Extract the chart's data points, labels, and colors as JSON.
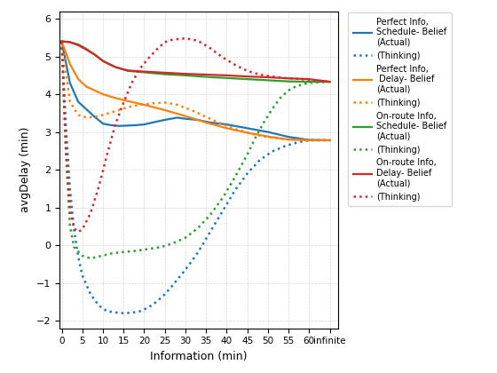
{
  "x_ticks": [
    0,
    5,
    10,
    15,
    20,
    25,
    30,
    35,
    40,
    45,
    50,
    55,
    60,
    65
  ],
  "x_tick_labels": [
    "0",
    "5",
    "10",
    "15",
    "20",
    "25",
    "30",
    "35",
    "40",
    "45",
    "50",
    "55",
    "60",
    "infinite"
  ],
  "blue_actual_x": [
    0,
    2,
    4,
    6,
    8,
    10,
    12,
    14,
    16,
    18,
    20,
    22,
    25,
    28,
    30,
    33,
    36,
    40,
    45,
    50,
    55,
    60,
    65
  ],
  "blue_actual_y": [
    5.4,
    4.3,
    3.8,
    3.6,
    3.4,
    3.22,
    3.18,
    3.16,
    3.17,
    3.18,
    3.2,
    3.25,
    3.32,
    3.38,
    3.35,
    3.32,
    3.25,
    3.2,
    3.1,
    3.0,
    2.87,
    2.79,
    2.78
  ],
  "blue_thinking_x": [
    0,
    1,
    2,
    3,
    4,
    5,
    7,
    9,
    11,
    13,
    15,
    17,
    19,
    21,
    23,
    25,
    27,
    30,
    33,
    36,
    39,
    42,
    45,
    48,
    51,
    54,
    57,
    60,
    65
  ],
  "blue_thinking_y": [
    5.4,
    3.2,
    1.5,
    0.4,
    -0.3,
    -0.8,
    -1.3,
    -1.6,
    -1.75,
    -1.78,
    -1.8,
    -1.79,
    -1.75,
    -1.65,
    -1.5,
    -1.3,
    -1.05,
    -0.65,
    -0.2,
    0.35,
    0.9,
    1.45,
    1.9,
    2.25,
    2.48,
    2.62,
    2.72,
    2.78,
    2.78
  ],
  "orange_actual_x": [
    0,
    2,
    4,
    6,
    8,
    10,
    13,
    16,
    20,
    25,
    30,
    35,
    40,
    45,
    50,
    55,
    60,
    65
  ],
  "orange_actual_y": [
    5.4,
    4.8,
    4.4,
    4.2,
    4.1,
    4.0,
    3.9,
    3.82,
    3.72,
    3.58,
    3.42,
    3.25,
    3.1,
    2.98,
    2.88,
    2.8,
    2.78,
    2.78
  ],
  "orange_thinking_x": [
    0,
    2,
    4,
    6,
    8,
    10,
    13,
    15,
    17,
    19,
    22,
    25,
    28,
    31,
    34,
    38,
    42,
    46,
    50,
    55,
    60,
    65
  ],
  "orange_thinking_y": [
    5.4,
    3.8,
    3.45,
    3.38,
    3.4,
    3.45,
    3.55,
    3.62,
    3.68,
    3.72,
    3.76,
    3.78,
    3.72,
    3.6,
    3.45,
    3.25,
    3.08,
    2.95,
    2.86,
    2.8,
    2.78,
    2.78
  ],
  "green_actual_x": [
    0,
    2,
    4,
    6,
    8,
    10,
    13,
    16,
    20,
    25,
    30,
    35,
    40,
    45,
    50,
    55,
    60,
    65
  ],
  "green_actual_y": [
    5.4,
    5.38,
    5.32,
    5.2,
    5.05,
    4.88,
    4.72,
    4.62,
    4.58,
    4.53,
    4.5,
    4.46,
    4.43,
    4.4,
    4.37,
    4.34,
    4.33,
    4.33
  ],
  "green_thinking_x": [
    0,
    1,
    2,
    3,
    5,
    7,
    9,
    12,
    15,
    18,
    21,
    24,
    27,
    30,
    33,
    36,
    39,
    42,
    45,
    47,
    49,
    51,
    53,
    55,
    57,
    60,
    65
  ],
  "green_thinking_y": [
    5.4,
    2.5,
    0.5,
    -0.05,
    -0.28,
    -0.35,
    -0.3,
    -0.22,
    -0.18,
    -0.15,
    -0.1,
    -0.05,
    0.05,
    0.2,
    0.45,
    0.8,
    1.25,
    1.8,
    2.4,
    2.85,
    3.25,
    3.6,
    3.9,
    4.1,
    4.22,
    4.3,
    4.33
  ],
  "red_actual_x": [
    0,
    2,
    4,
    6,
    8,
    10,
    13,
    16,
    20,
    25,
    30,
    35,
    40,
    45,
    50,
    55,
    60,
    65
  ],
  "red_actual_y": [
    5.4,
    5.38,
    5.3,
    5.18,
    5.05,
    4.88,
    4.72,
    4.63,
    4.6,
    4.57,
    4.54,
    4.52,
    4.5,
    4.47,
    4.45,
    4.42,
    4.4,
    4.33
  ],
  "red_thinking_x": [
    0,
    1,
    2,
    3,
    4,
    5,
    7,
    9,
    11,
    13,
    15,
    17,
    19,
    21,
    23,
    25,
    27,
    30,
    33,
    36,
    39,
    42,
    45,
    48,
    51,
    54,
    57,
    60,
    65
  ],
  "red_thinking_y": [
    5.4,
    2.6,
    0.95,
    0.45,
    0.35,
    0.42,
    0.85,
    1.55,
    2.4,
    3.2,
    3.78,
    4.3,
    4.68,
    4.95,
    5.18,
    5.38,
    5.45,
    5.48,
    5.42,
    5.22,
    4.98,
    4.78,
    4.62,
    4.52,
    4.47,
    4.43,
    4.41,
    4.38,
    4.33
  ],
  "blue_color": "#1f77b4",
  "orange_color": "#ff7f0e",
  "green_color": "#2ca02c",
  "red_color": "#d62728",
  "ylabel": "avgDelay (min)",
  "xlabel": "Information (min)",
  "ylim": [
    -2.2,
    6.2
  ],
  "xlim": [
    -0.5,
    67
  ],
  "legend_entries": [
    "Perfect Info,\nSchedule- Belief\n(Actual)",
    "(Thinking)",
    "Perfect Info,\n Delay- Belief\n(Actual)",
    "(Thinking)",
    "On-route Info,\nSchedule- Belief\n(Actual)",
    "(Thinking)",
    "On-route Info,\nDelay- Belief\n(Actual)",
    "(Thinking)"
  ]
}
